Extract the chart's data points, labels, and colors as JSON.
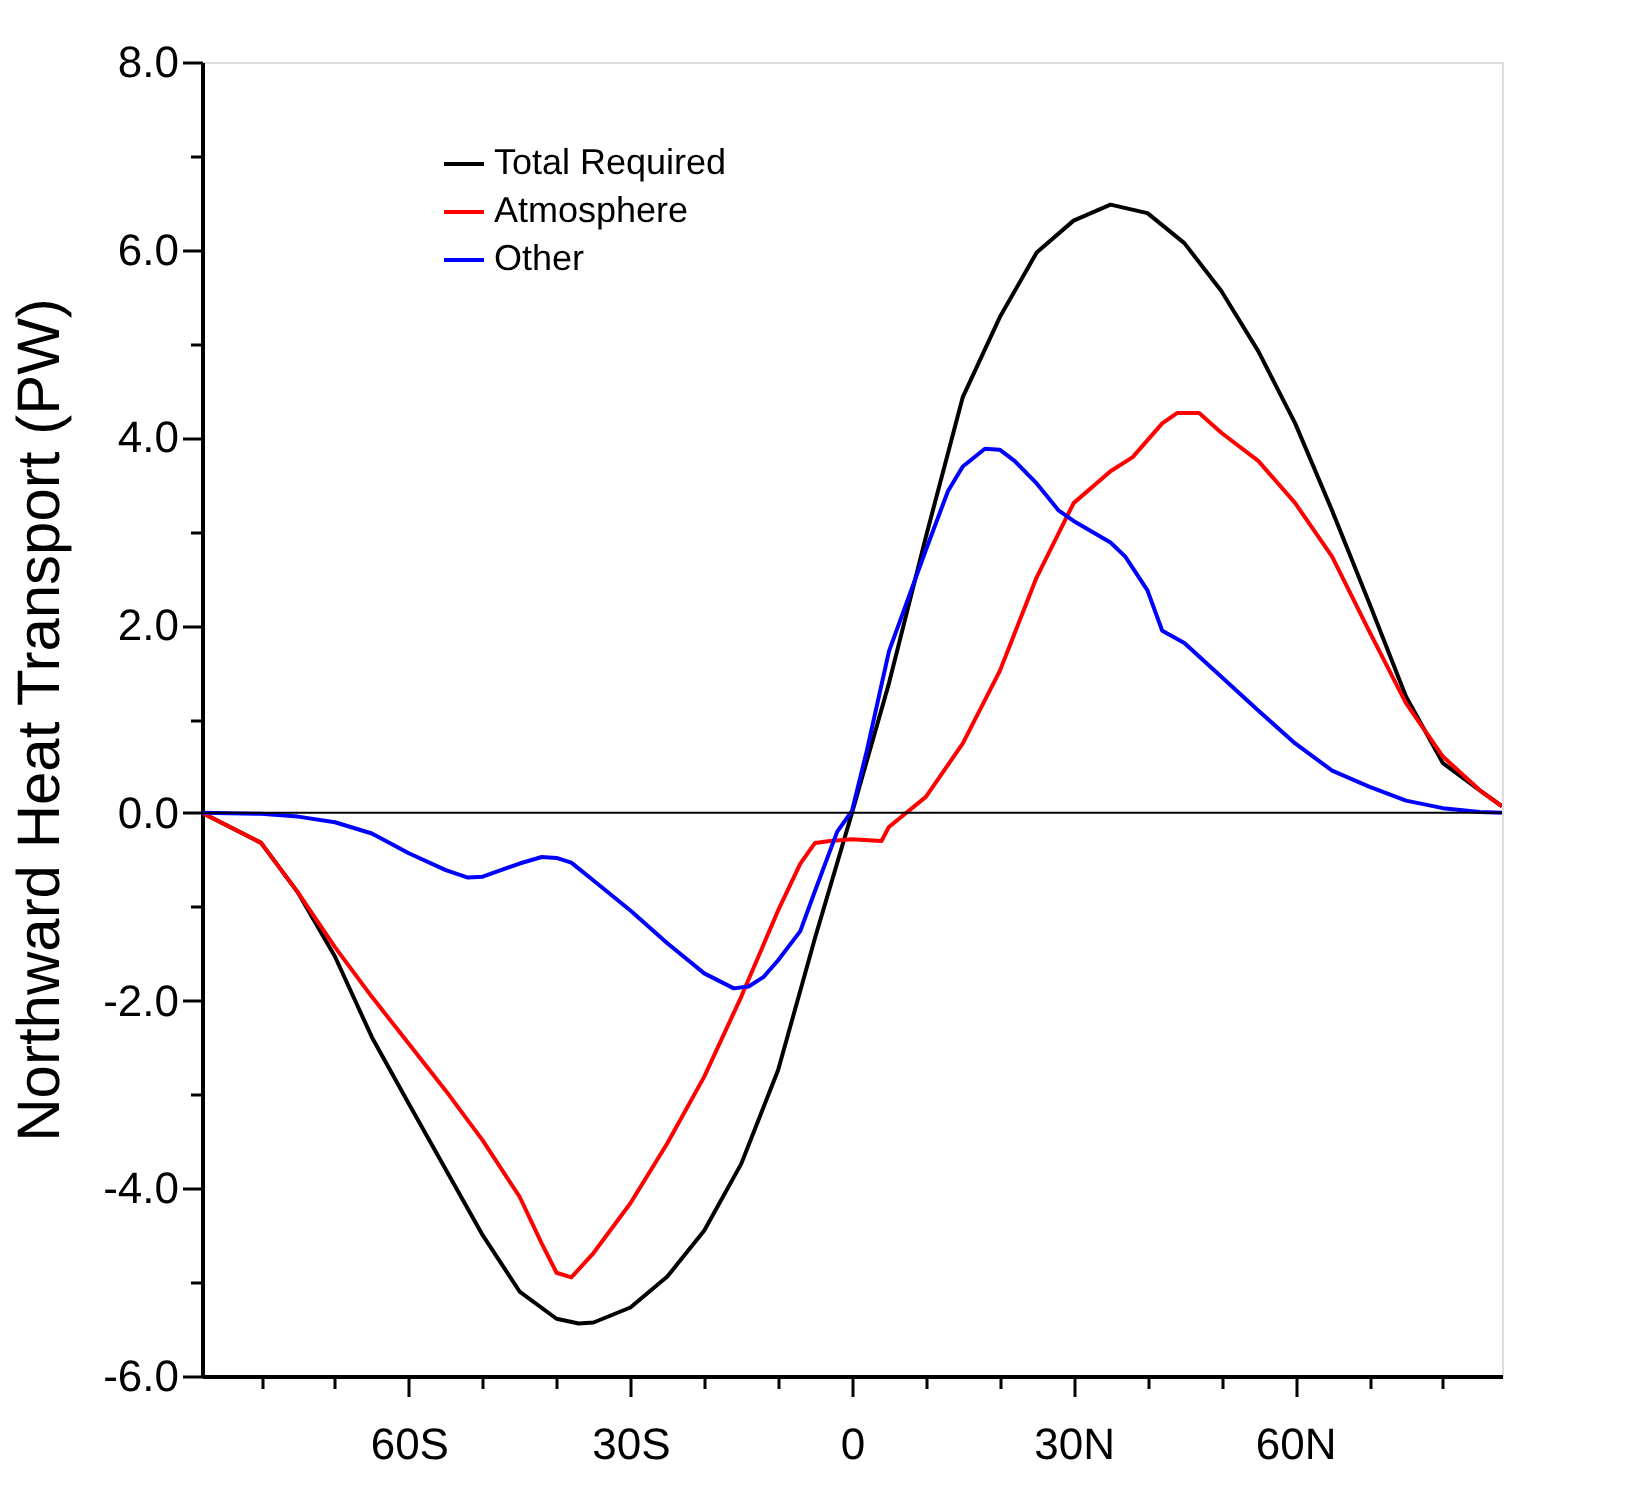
{
  "chart_data": {
    "type": "line",
    "ylabel": "Northward Heat Transport (PW)",
    "xlim": [
      -88,
      88
    ],
    "xticks": [
      {
        "value": -80,
        "label": null
      },
      {
        "value": -70,
        "label": null
      },
      {
        "value": -60,
        "label": "60S"
      },
      {
        "value": -50,
        "label": null
      },
      {
        "value": -40,
        "label": null
      },
      {
        "value": -30,
        "label": "30S"
      },
      {
        "value": -20,
        "label": null
      },
      {
        "value": -10,
        "label": null
      },
      0,
      {
        "value": 10,
        "label": null
      },
      {
        "value": 20,
        "label": null
      },
      {
        "value": 30,
        "label": "30N"
      },
      {
        "value": 40,
        "label": null
      },
      {
        "value": 50,
        "label": null
      },
      {
        "value": 60,
        "label": "60N"
      },
      {
        "value": 70,
        "label": null
      },
      {
        "value": 80,
        "label": null
      }
    ],
    "ylim": [
      -6,
      8
    ],
    "yticks": [
      {
        "value": -6,
        "label": "-6.0"
      },
      {
        "value": -5,
        "label": null
      },
      {
        "value": -4,
        "label": "-4.0"
      },
      {
        "value": -3,
        "label": null
      },
      {
        "value": -2,
        "label": "-2.0"
      },
      {
        "value": -1,
        "label": null
      },
      {
        "value": 0,
        "label": "0.0"
      },
      {
        "value": 1,
        "label": null
      },
      {
        "value": 2,
        "label": "2.0"
      },
      {
        "value": 3,
        "label": null
      },
      {
        "value": 4,
        "label": "4.0"
      },
      {
        "value": 5,
        "label": null
      },
      {
        "value": 6,
        "label": "6.0"
      },
      {
        "value": 7,
        "label": null
      },
      {
        "value": 8,
        "label": "8.0"
      }
    ],
    "grid": false,
    "legend": "top left",
    "marker": "none",
    "line_style": "solid",
    "ref_lines": [
      {
        "axis": "y",
        "value": 0,
        "label": null,
        "color": "#000000"
      }
    ],
    "series": [
      {
        "name": "Total Required",
        "color": "#000000",
        "x": [
          -88,
          -80,
          -75,
          -70,
          -65,
          -60,
          -55,
          -50,
          -45,
          -40,
          -37,
          -35,
          -30,
          -25,
          -20,
          -15,
          -10,
          -5,
          0,
          5,
          10,
          15,
          20,
          25,
          30,
          35,
          40,
          45,
          50,
          55,
          60,
          65,
          70,
          75,
          80,
          85,
          88
        ],
        "values": [
          0,
          -0.32,
          -0.85,
          -1.53,
          -2.39,
          -3.1,
          -3.8,
          -4.5,
          -5.1,
          -5.39,
          -5.44,
          -5.43,
          -5.27,
          -4.94,
          -4.45,
          -3.74,
          -2.74,
          -1.33,
          0,
          1.38,
          2.94,
          4.43,
          5.28,
          5.97,
          6.31,
          6.48,
          6.39,
          6.07,
          5.56,
          4.92,
          4.15,
          3.22,
          2.24,
          1.24,
          0.53,
          0.24,
          0.07
        ]
      },
      {
        "name": "Atmosphere",
        "color": "#ff0000",
        "x": [
          -88,
          -80,
          -75,
          -70,
          -65,
          -60,
          -55,
          -50,
          -45,
          -42,
          -40,
          -38,
          -35,
          -30,
          -25,
          -20,
          -15,
          -10,
          -7,
          -5,
          -3,
          0,
          4,
          5,
          10,
          15,
          20,
          25,
          30,
          35,
          38,
          42,
          44,
          47,
          50,
          55,
          60,
          65,
          70,
          75,
          80,
          85,
          88
        ],
        "values": [
          0,
          -0.32,
          -0.85,
          -1.43,
          -1.96,
          -2.46,
          -2.96,
          -3.49,
          -4.09,
          -4.59,
          -4.9,
          -4.95,
          -4.69,
          -4.16,
          -3.52,
          -2.81,
          -1.96,
          -1.04,
          -0.54,
          -0.32,
          -0.3,
          -0.28,
          -0.3,
          -0.15,
          0.17,
          0.74,
          1.51,
          2.51,
          3.3,
          3.64,
          3.79,
          4.15,
          4.26,
          4.26,
          4.05,
          3.75,
          3.3,
          2.73,
          1.94,
          1.17,
          0.6,
          0.24,
          0.07
        ]
      },
      {
        "name": "Other",
        "color": "#0000ff",
        "x": [
          -88,
          -80,
          -75,
          -70,
          -65,
          -60,
          -55,
          -52,
          -50,
          -45,
          -42,
          -40,
          -38,
          -35,
          -30,
          -25,
          -20,
          -16,
          -14,
          -12,
          -10,
          -7,
          -5,
          -2,
          0,
          2,
          5,
          10,
          13,
          15,
          18,
          20,
          22,
          25,
          28,
          30,
          35,
          37,
          40,
          42,
          45,
          50,
          55,
          60,
          65,
          70,
          75,
          80,
          85,
          88
        ],
        "values": [
          0,
          -0.01,
          -0.04,
          -0.1,
          -0.22,
          -0.43,
          -0.61,
          -0.69,
          -0.68,
          -0.54,
          -0.47,
          -0.48,
          -0.53,
          -0.72,
          -1.04,
          -1.39,
          -1.71,
          -1.87,
          -1.85,
          -1.75,
          -1.57,
          -1.26,
          -0.83,
          -0.2,
          0.02,
          0.66,
          1.72,
          2.8,
          3.43,
          3.69,
          3.88,
          3.87,
          3.75,
          3.51,
          3.22,
          3.11,
          2.88,
          2.73,
          2.37,
          1.94,
          1.81,
          1.45,
          1.09,
          0.74,
          0.45,
          0.28,
          0.13,
          0.05,
          0.01,
          0
        ]
      }
    ]
  }
}
